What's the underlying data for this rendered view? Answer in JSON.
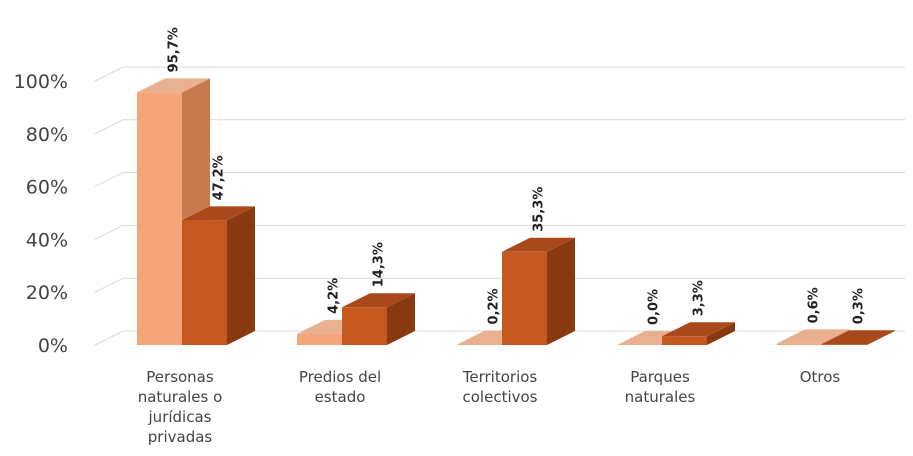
{
  "chart_data": {
    "type": "bar",
    "title": "",
    "xlabel": "",
    "ylabel": "",
    "ylim": [
      0,
      100
    ],
    "yticks": [
      "0%",
      "20%",
      "40%",
      "60%",
      "80%",
      "100%"
    ],
    "grid": true,
    "legend": "none",
    "categories": [
      [
        "Personas",
        "naturales o",
        "jurídicas",
        "privadas"
      ],
      [
        "Predios del",
        "estado"
      ],
      [
        "Territorios",
        "colectivos"
      ],
      [
        "Parques",
        "naturales"
      ],
      [
        "Otros"
      ]
    ],
    "series": [
      {
        "values": [
          95.7,
          4.2,
          0.2,
          0.0,
          0.6
        ],
        "labels": [
          "95,7%",
          "4,2%",
          "0,2%",
          "0,0%",
          "0,6%"
        ],
        "color": "#f4a57a",
        "side_color": "#c87a4f",
        "top_color": "#e8b08e"
      },
      {
        "values": [
          47.2,
          14.3,
          35.3,
          3.3,
          0.3
        ],
        "labels": [
          "47,2%",
          "14,3%",
          "35,3%",
          "3,3%",
          "0,3%"
        ],
        "color": "#c4581f",
        "side_color": "#8a3a10",
        "top_color": "#a9481a"
      }
    ]
  }
}
